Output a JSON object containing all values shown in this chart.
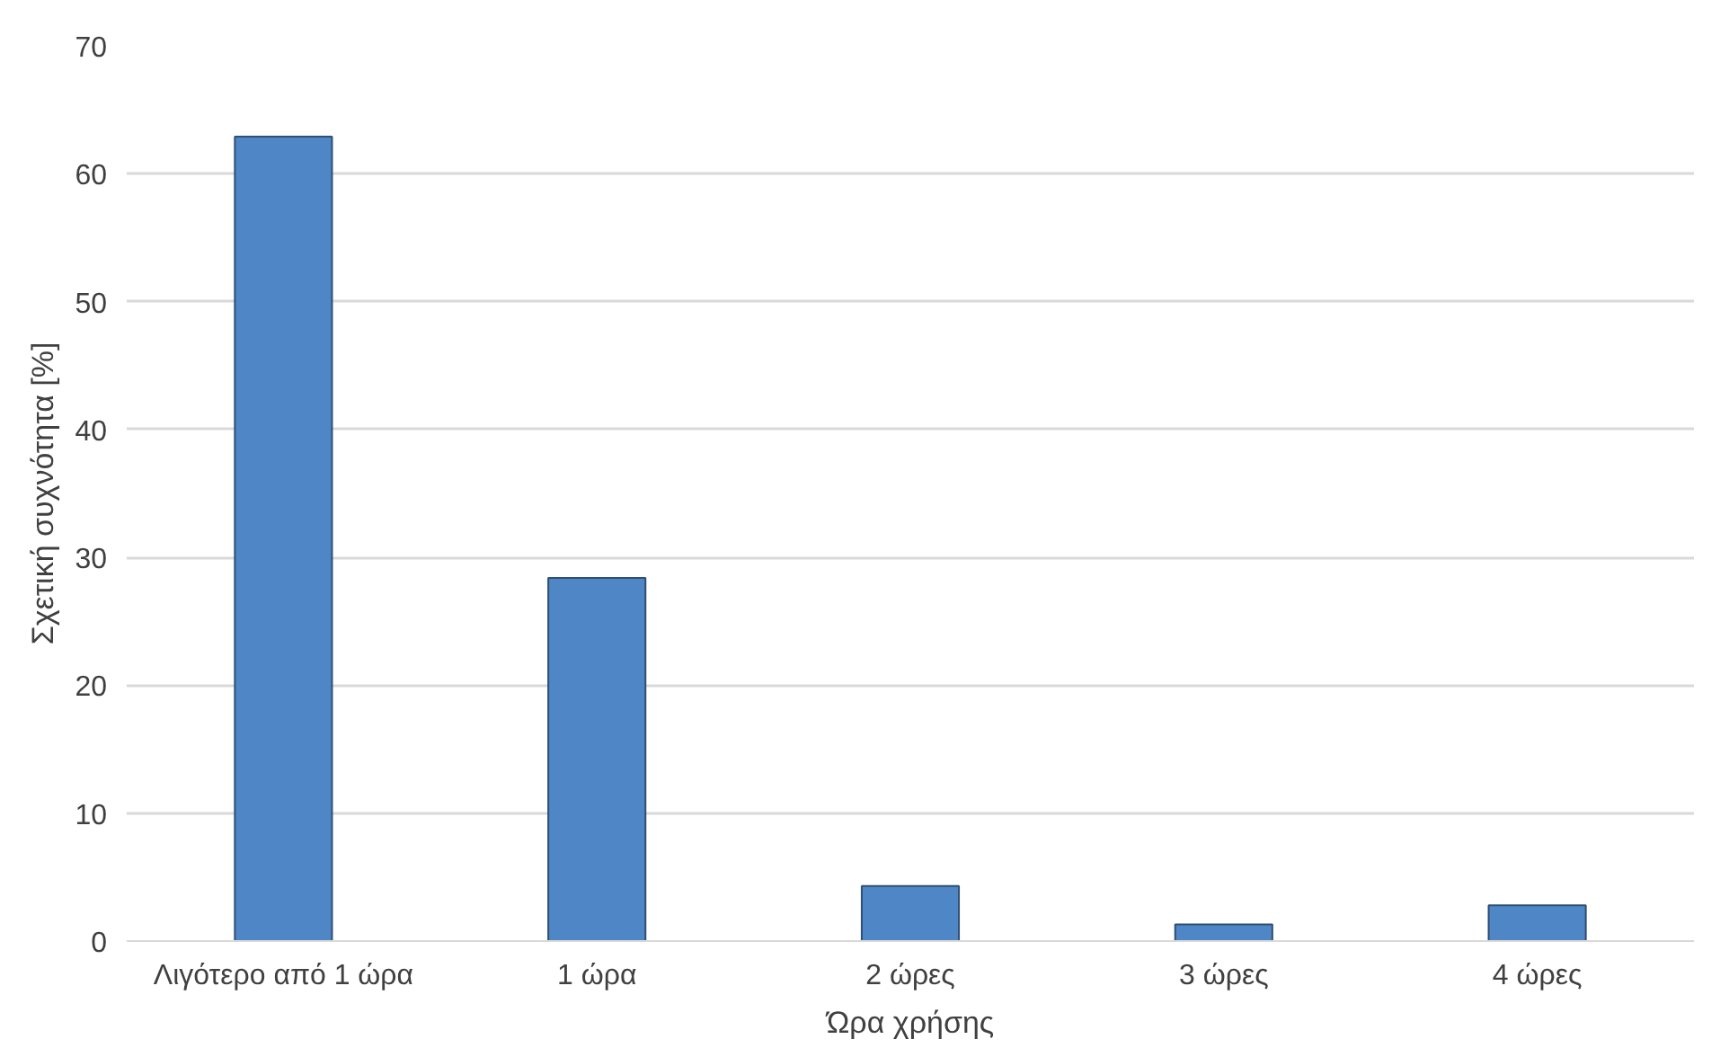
{
  "chart_data": {
    "type": "bar",
    "categories": [
      "Λιγότερο από 1 ώρα",
      "1 ώρα",
      "2 ώρες",
      "3 ώρες",
      "4 ώρες"
    ],
    "values": [
      62.9,
      28.4,
      4.3,
      1.3,
      2.8
    ],
    "color": "#4f86c6",
    "xlabel": "Ώρα χρήσης",
    "ylabel": "Σχετική συχνότητα [%]",
    "ylim": [
      0,
      70
    ],
    "yticks": [
      0,
      10,
      20,
      30,
      40,
      50,
      60,
      70
    ],
    "grid": "y"
  }
}
